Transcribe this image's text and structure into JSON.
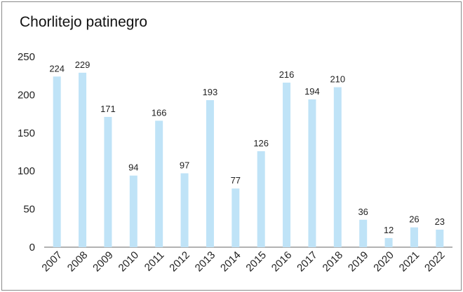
{
  "chart_data": {
    "type": "bar",
    "title": "Chorlitejo patinegro",
    "categories": [
      "2007",
      "2008",
      "2009",
      "2010",
      "2011",
      "2012",
      "2013",
      "2014",
      "2015",
      "2016",
      "2017",
      "2018",
      "2019",
      "2020",
      "2021",
      "2022"
    ],
    "values": [
      224,
      229,
      171,
      94,
      166,
      97,
      193,
      77,
      126,
      216,
      194,
      210,
      36,
      12,
      26,
      23
    ],
    "ylim": [
      0,
      250
    ],
    "yticks": [
      0,
      50,
      100,
      150,
      200,
      250
    ],
    "grid": false,
    "legend": "none",
    "bar_color": "#bfe3f7"
  }
}
